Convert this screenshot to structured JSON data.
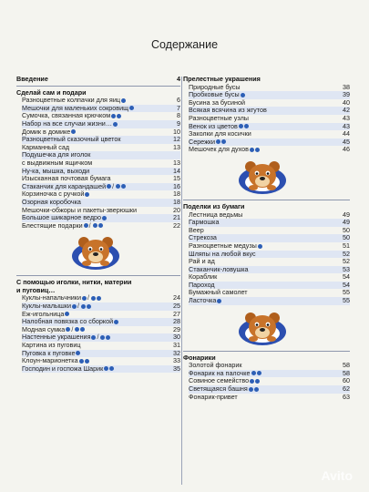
{
  "title": "Содержание",
  "left": [
    {
      "type": "sec",
      "text": "Введение",
      "page": "4"
    },
    {
      "type": "rule"
    },
    {
      "type": "sec",
      "text": "Сделай сам и подари"
    },
    {
      "type": "sub",
      "text": "Разноцветные колпачки для яиц",
      "dots": "1",
      "page": "6"
    },
    {
      "type": "sub",
      "text": "Мешочки для маленьких сокровищ",
      "dots": "1",
      "page": "7"
    },
    {
      "type": "sub",
      "text": "Сумочка, связанная крючком",
      "dots": "2",
      "page": "8"
    },
    {
      "type": "sub",
      "text": "Набор на все случаи жизни…",
      "dots": "1",
      "page": "9"
    },
    {
      "type": "sub",
      "text": "Домик в домике",
      "dots": "1",
      "page": "10"
    },
    {
      "type": "sub",
      "text": "Разноцветный сказочный цветок",
      "page": "12"
    },
    {
      "type": "sub",
      "text": "Карманный сад",
      "page": "13"
    },
    {
      "type": "sub",
      "text": "Подушечка для иголок"
    },
    {
      "type": "sub",
      "text": "с выдвижным ящичком",
      "page": "13"
    },
    {
      "type": "sub",
      "text": "Ну-ка, мышка, выходи",
      "page": "14"
    },
    {
      "type": "sub",
      "text": "Изысканная почтовая бумага",
      "page": "15"
    },
    {
      "type": "sub",
      "text": "Стаканчик для карандашей",
      "dots": "1/2",
      "page": "16"
    },
    {
      "type": "sub",
      "text": "Корзиночка с ручкой",
      "dots": "1",
      "page": "18"
    },
    {
      "type": "sub",
      "text": "Озорная коробочка",
      "page": "18"
    },
    {
      "type": "sub",
      "text": "Мешочки-обжоры и пакеты-зверюшки",
      "page": "20"
    },
    {
      "type": "sub",
      "text": "Большое шикарное ведро",
      "dots": "1",
      "page": "21"
    },
    {
      "type": "sub",
      "text": "Блестящие подарки",
      "dots": "1/2",
      "page": "22"
    },
    {
      "type": "bear"
    },
    {
      "type": "rule"
    },
    {
      "type": "sec",
      "text": "С помощью иголки, нитки, материи"
    },
    {
      "type": "sec",
      "text": "и пуговиц…"
    },
    {
      "type": "sub",
      "text": "Куклы-напальчники",
      "dots": "1/2",
      "page": "24"
    },
    {
      "type": "sub",
      "text": "Куклы-малышки",
      "dots": "1/2",
      "page": "25"
    },
    {
      "type": "sub",
      "text": "Еж-игольница",
      "dots": "1",
      "page": "27"
    },
    {
      "type": "sub",
      "text": "Налобная повязка со сборкой",
      "dots": "1",
      "page": "28"
    },
    {
      "type": "sub",
      "text": "Модная сумка",
      "dots": "1/2",
      "page": "29"
    },
    {
      "type": "sub",
      "text": "Настенные украшения",
      "dots": "1/2",
      "page": "30"
    },
    {
      "type": "sub",
      "text": "Картина из пуговиц",
      "page": "31"
    },
    {
      "type": "sub",
      "text": "Пуговка к пуговке",
      "dots": "1",
      "page": "32"
    },
    {
      "type": "sub",
      "text": "Клоун-марионетка",
      "dots": "2",
      "page": "33"
    },
    {
      "type": "sub",
      "text": "Господин и госпожа Шарик",
      "dots": "2",
      "page": "35"
    }
  ],
  "right": [
    {
      "type": "sec",
      "text": "Прелестные украшения"
    },
    {
      "type": "sub",
      "text": "Природные бусы",
      "page": "38"
    },
    {
      "type": "sub",
      "text": "Пробковые бусы",
      "dots": "1",
      "page": "39"
    },
    {
      "type": "sub",
      "text": "Бусина за бусиной",
      "page": "40"
    },
    {
      "type": "sub",
      "text": "Всякая всячина из жгутов",
      "page": "42"
    },
    {
      "type": "sub",
      "text": "Разноцветные узлы",
      "page": "43"
    },
    {
      "type": "sub",
      "text": "Венок из цветов",
      "dots": "2",
      "page": "43"
    },
    {
      "type": "sub",
      "text": "Заколки для косички",
      "page": "44"
    },
    {
      "type": "sub",
      "text": "Сережки",
      "dots": "2",
      "page": "45"
    },
    {
      "type": "sub",
      "text": "Мешочек для духов",
      "dots": "2",
      "page": "46"
    },
    {
      "type": "bear"
    },
    {
      "type": "rule"
    },
    {
      "type": "sec",
      "text": "Поделки из бумаги"
    },
    {
      "type": "sub",
      "text": "Лестница ведьмы",
      "page": "49"
    },
    {
      "type": "sub",
      "text": "Гармошка",
      "page": "49"
    },
    {
      "type": "sub",
      "text": "Веер",
      "page": "50"
    },
    {
      "type": "sub",
      "text": "Стрекоза",
      "page": "50"
    },
    {
      "type": "sub",
      "text": "Разноцветные медузы",
      "dots": "1",
      "page": "51"
    },
    {
      "type": "sub",
      "text": "Шляпы на любой вкус",
      "page": "52"
    },
    {
      "type": "sub",
      "text": "Рай и ад",
      "page": "52"
    },
    {
      "type": "sub",
      "text": "Стаканчик-ловушка",
      "page": "53"
    },
    {
      "type": "sub",
      "text": "Кораблик",
      "page": "54"
    },
    {
      "type": "sub",
      "text": "Пароход",
      "page": "54"
    },
    {
      "type": "sub",
      "text": "Бумажный самолет",
      "page": "55"
    },
    {
      "type": "sub",
      "text": "Ласточка",
      "dots": "1",
      "page": "55"
    },
    {
      "type": "bear"
    },
    {
      "type": "rule"
    },
    {
      "type": "sec",
      "text": "Фонарики"
    },
    {
      "type": "sub",
      "text": "Золотой фонарик",
      "page": "58"
    },
    {
      "type": "sub",
      "text": "Фонарик на палочке",
      "dots": "2",
      "page": "58"
    },
    {
      "type": "sub",
      "text": "Совиное семейство",
      "dots": "2",
      "page": "60"
    },
    {
      "type": "sub",
      "text": "Светящаяся башня",
      "dots": "2",
      "page": "62"
    },
    {
      "type": "sub",
      "text": "Фонарик-привет",
      "page": "63"
    }
  ],
  "watermark": "Avito",
  "colors": {
    "dot": "#2d5fb6",
    "band": "#dfe6f3",
    "rule": "#8e97ad"
  }
}
